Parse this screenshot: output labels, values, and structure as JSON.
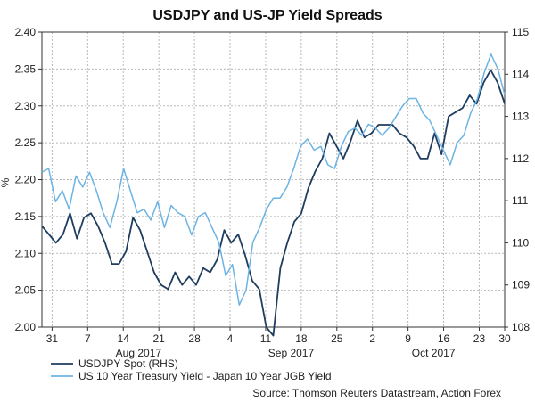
{
  "chart_data": {
    "type": "line",
    "title": "USDJPY and US-JP Yield Spreads",
    "ylabel": "%",
    "y_left": {
      "lim": [
        2.0,
        2.4
      ],
      "ticks": [
        "2.00",
        "2.05",
        "2.10",
        "2.15",
        "2.20",
        "2.25",
        "2.30",
        "2.35",
        "2.40"
      ],
      "tick_values": [
        2.0,
        2.05,
        2.1,
        2.15,
        2.2,
        2.25,
        2.3,
        2.35,
        2.4
      ]
    },
    "y_right": {
      "lim": [
        108,
        115
      ],
      "ticks": [
        "108",
        "109",
        "110",
        "111",
        "112",
        "113",
        "114",
        "115"
      ],
      "tick_values": [
        108,
        109,
        110,
        111,
        112,
        113,
        114,
        115
      ]
    },
    "x_domain": [
      0,
      91
    ],
    "x_ticks": [
      {
        "label": "31",
        "x": 2
      },
      {
        "label": "7",
        "x": 9
      },
      {
        "label": "14",
        "x": 16
      },
      {
        "label": "21",
        "x": 23
      },
      {
        "label": "28",
        "x": 30
      },
      {
        "label": "4",
        "x": 37
      },
      {
        "label": "11",
        "x": 44
      },
      {
        "label": "18",
        "x": 51
      },
      {
        "label": "25",
        "x": 58
      },
      {
        "label": "2",
        "x": 65
      },
      {
        "label": "9",
        "x": 72
      },
      {
        "label": "16",
        "x": 79
      },
      {
        "label": "23",
        "x": 86
      },
      {
        "label": "30",
        "x": 91
      }
    ],
    "month_labels": [
      {
        "label": "Aug 2017",
        "x": 19
      },
      {
        "label": "Sep 2017",
        "x": 49
      },
      {
        "label": "Oct 2017",
        "x": 77
      }
    ],
    "series": [
      {
        "name": "USDJPY Spot (RHS)",
        "axis": "right",
        "color": "#1f3d5e",
        "points": [
          [
            0,
            110.4
          ],
          [
            1,
            110.2
          ],
          [
            2,
            110.0
          ],
          [
            3,
            110.2
          ],
          [
            4,
            110.7
          ],
          [
            5,
            110.1
          ],
          [
            6,
            110.6
          ],
          [
            7,
            110.7
          ],
          [
            8,
            110.4
          ],
          [
            9,
            110.0
          ],
          [
            10,
            109.5
          ],
          [
            11,
            109.5
          ],
          [
            12,
            109.8
          ],
          [
            13,
            110.6
          ],
          [
            14,
            110.3
          ],
          [
            15,
            109.8
          ],
          [
            16,
            109.3
          ],
          [
            17,
            109.0
          ],
          [
            18,
            108.9
          ],
          [
            19,
            109.3
          ],
          [
            20,
            109.0
          ],
          [
            21,
            109.2
          ],
          [
            22,
            109.0
          ],
          [
            23,
            109.4
          ],
          [
            24,
            109.3
          ],
          [
            25,
            109.6
          ],
          [
            26,
            110.3
          ],
          [
            27,
            110.0
          ],
          [
            28,
            110.2
          ],
          [
            29,
            109.7
          ],
          [
            30,
            109.1
          ],
          [
            31,
            108.9
          ],
          [
            32,
            108.0
          ],
          [
            33,
            107.8
          ],
          [
            34,
            109.4
          ],
          [
            35,
            110.0
          ],
          [
            36,
            110.5
          ],
          [
            37,
            110.7
          ],
          [
            38,
            111.3
          ],
          [
            39,
            111.7
          ],
          [
            40,
            112.0
          ],
          [
            41,
            112.6
          ],
          [
            42,
            112.3
          ],
          [
            43,
            112.0
          ],
          [
            44,
            112.4
          ],
          [
            45,
            112.9
          ],
          [
            46,
            112.5
          ],
          [
            47,
            112.6
          ],
          [
            48,
            112.8
          ],
          [
            49,
            112.8
          ],
          [
            50,
            112.8
          ],
          [
            51,
            112.6
          ],
          [
            52,
            112.5
          ],
          [
            53,
            112.3
          ],
          [
            54,
            112.0
          ],
          [
            55,
            112.0
          ],
          [
            56,
            112.6
          ],
          [
            57,
            112.1
          ],
          [
            58,
            113.0
          ],
          [
            59,
            113.1
          ],
          [
            60,
            113.2
          ],
          [
            61,
            113.5
          ],
          [
            62,
            113.3
          ],
          [
            63,
            113.8
          ],
          [
            64,
            114.1
          ],
          [
            65,
            113.8
          ],
          [
            66,
            113.3
          ]
        ],
        "x_scale_note": "positions mapped proportionally across trading days"
      },
      {
        "name": "US 10 Year Treasury Yield - Japan 10 Year JGB Yield",
        "axis": "left",
        "color": "#6cb4e4",
        "points": [
          [
            0,
            2.21
          ],
          [
            1,
            2.215
          ],
          [
            2,
            2.17
          ],
          [
            3,
            2.185
          ],
          [
            4,
            2.16
          ],
          [
            5,
            2.205
          ],
          [
            6,
            2.19
          ],
          [
            7,
            2.21
          ],
          [
            8,
            2.185
          ],
          [
            9,
            2.155
          ],
          [
            10,
            2.135
          ],
          [
            11,
            2.17
          ],
          [
            12,
            2.215
          ],
          [
            13,
            2.185
          ],
          [
            14,
            2.155
          ],
          [
            15,
            2.16
          ],
          [
            16,
            2.145
          ],
          [
            17,
            2.17
          ],
          [
            18,
            2.135
          ],
          [
            19,
            2.165
          ],
          [
            20,
            2.155
          ],
          [
            21,
            2.15
          ],
          [
            22,
            2.125
          ],
          [
            23,
            2.15
          ],
          [
            24,
            2.155
          ],
          [
            25,
            2.135
          ],
          [
            26,
            2.115
          ],
          [
            27,
            2.07
          ],
          [
            28,
            2.085
          ],
          [
            29,
            2.03
          ],
          [
            30,
            2.05
          ],
          [
            31,
            2.115
          ],
          [
            32,
            2.135
          ],
          [
            33,
            2.16
          ],
          [
            34,
            2.175
          ],
          [
            35,
            2.175
          ],
          [
            36,
            2.19
          ],
          [
            37,
            2.215
          ],
          [
            38,
            2.245
          ],
          [
            39,
            2.255
          ],
          [
            40,
            2.24
          ],
          [
            41,
            2.245
          ],
          [
            42,
            2.22
          ],
          [
            43,
            2.215
          ],
          [
            44,
            2.245
          ],
          [
            45,
            2.265
          ],
          [
            46,
            2.27
          ],
          [
            47,
            2.26
          ],
          [
            48,
            2.275
          ],
          [
            49,
            2.27
          ],
          [
            50,
            2.26
          ],
          [
            51,
            2.27
          ],
          [
            52,
            2.285
          ],
          [
            53,
            2.3
          ],
          [
            54,
            2.31
          ],
          [
            55,
            2.31
          ],
          [
            56,
            2.29
          ],
          [
            57,
            2.28
          ],
          [
            58,
            2.26
          ],
          [
            59,
            2.24
          ],
          [
            60,
            2.22
          ],
          [
            61,
            2.25
          ],
          [
            62,
            2.26
          ],
          [
            63,
            2.29
          ],
          [
            64,
            2.31
          ],
          [
            65,
            2.345
          ],
          [
            66,
            2.37
          ],
          [
            67,
            2.35
          ],
          [
            68,
            2.315
          ]
        ]
      }
    ],
    "legend": [
      {
        "label": "USDJPY Spot (RHS)",
        "color": "#1f3d5e"
      },
      {
        "label": "US 10 Year Treasury Yield - Japan 10 Year JGB Yield",
        "color": "#6cb4e4"
      }
    ],
    "source": "Source: Thomson Reuters Datastream, Action Forex",
    "grid": true
  }
}
